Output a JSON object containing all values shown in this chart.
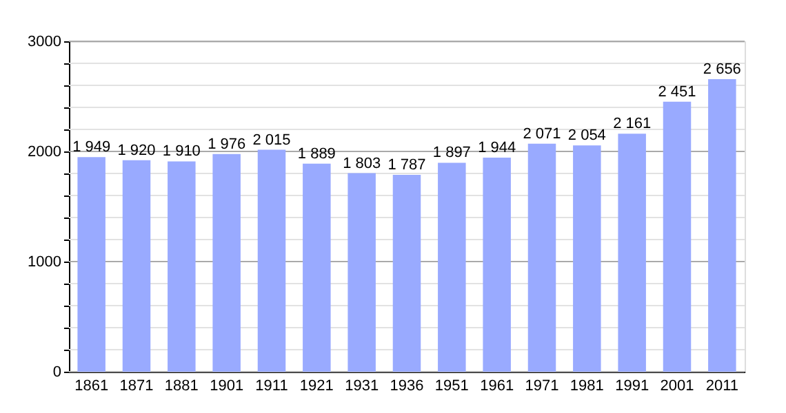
{
  "chart_data": {
    "type": "bar",
    "categories": [
      "1861",
      "1871",
      "1881",
      "1901",
      "1911",
      "1921",
      "1931",
      "1936",
      "1951",
      "1961",
      "1971",
      "1981",
      "1991",
      "2001",
      "2011"
    ],
    "values": [
      1949,
      1920,
      1910,
      1976,
      2015,
      1889,
      1803,
      1787,
      1897,
      1944,
      2071,
      2054,
      2161,
      2451,
      2656
    ],
    "value_labels": [
      "1 949",
      "1 920",
      "1 910",
      "1 976",
      "2 015",
      "1 889",
      "1 803",
      "1 787",
      "1 897",
      "1 944",
      "2 071",
      "2 054",
      "2 161",
      "2 451",
      "2 656"
    ],
    "color": "#99aaff",
    "ylim": [
      0,
      3000
    ],
    "yticks": [
      0,
      {
        "value": 200,
        "label": null
      },
      {
        "value": 400,
        "label": null
      },
      {
        "value": 600,
        "label": null
      },
      {
        "value": 800,
        "label": null
      },
      1000,
      {
        "value": 1200,
        "label": null
      },
      {
        "value": 1400,
        "label": null
      },
      {
        "value": 1600,
        "label": null
      },
      {
        "value": 1800,
        "label": null
      },
      2000,
      {
        "value": 2200,
        "label": null
      },
      {
        "value": 2400,
        "label": null
      },
      {
        "value": 2600,
        "label": null
      },
      {
        "value": 2800,
        "label": null
      },
      3000
    ],
    "grid": "y"
  }
}
